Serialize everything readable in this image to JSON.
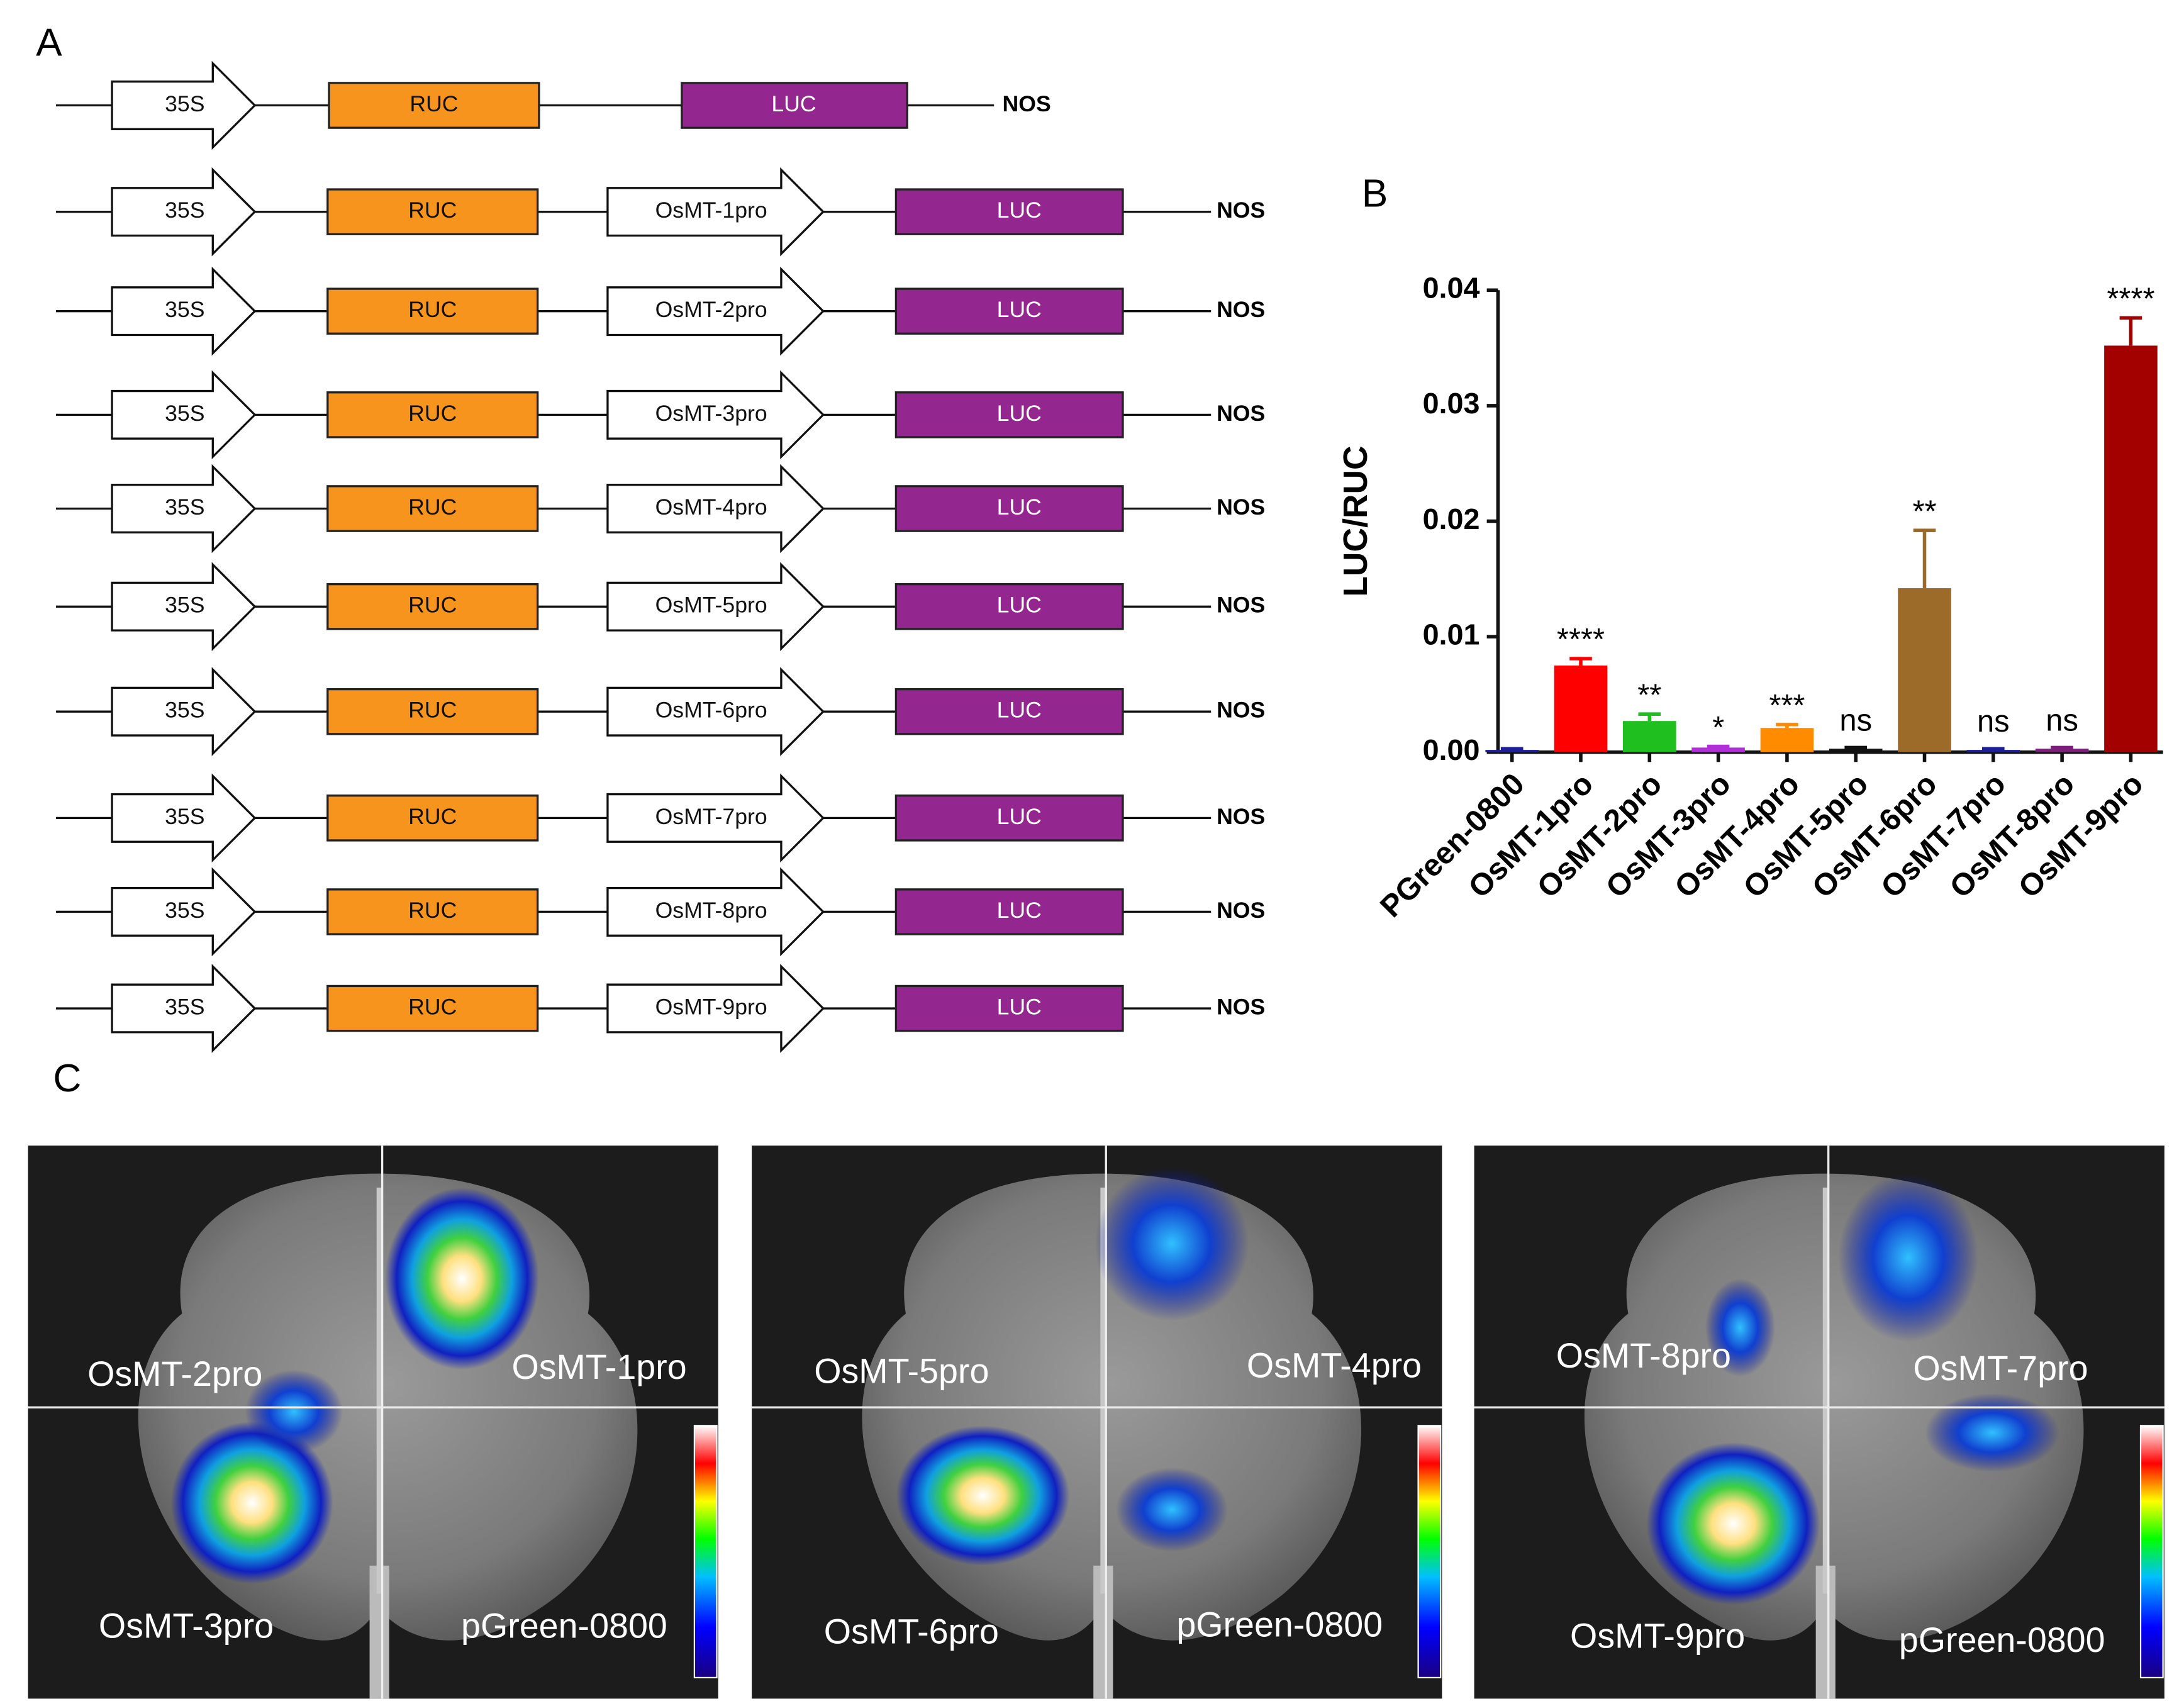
{
  "panel_labels": [
    "A",
    "B",
    "C"
  ],
  "constructs": [
    [
      "35S",
      "RUC",
      "LUC",
      "NOS"
    ],
    [
      "35S",
      "RUC",
      "OsMT-1pro",
      "LUC",
      "NOS"
    ],
    [
      "35S",
      "RUC",
      "OsMT-2pro",
      "LUC",
      "NOS"
    ],
    [
      "35S",
      "RUC",
      "OsMT-3pro",
      "LUC",
      "NOS"
    ],
    [
      "35S",
      "RUC",
      "OsMT-4pro",
      "LUC",
      "NOS"
    ],
    [
      "35S",
      "RUC",
      "OsMT-5pro",
      "LUC",
      "NOS"
    ],
    [
      "35S",
      "RUC",
      "OsMT-6pro",
      "LUC",
      "NOS"
    ],
    [
      "35S",
      "RUC",
      "OsMT-7pro",
      "LUC",
      "NOS"
    ],
    [
      "35S",
      "RUC",
      "OsMT-8pro",
      "LUC",
      "NOS"
    ],
    [
      "35S",
      "RUC",
      "OsMT-9pro",
      "LUC",
      "NOS"
    ]
  ],
  "chart_data": {
    "type": "bar",
    "ylabel": "LUC/RUC",
    "categories": [
      "PGreen-0800",
      "OsMT-1pro",
      "OsMT-2pro",
      "OsMT-3pro",
      "OsMT-4pro",
      "OsMT-5pro",
      "OsMT-6pro",
      "OsMT-7pro",
      "OsMT-8pro",
      "OsMT-9pro"
    ],
    "values": [
      0.0002,
      0.0075,
      0.0027,
      0.0004,
      0.0021,
      0.0003,
      0.0142,
      0.0002,
      0.0003,
      0.0352
    ],
    "errors": [
      0.0001,
      0.0006,
      0.0006,
      0.0001,
      0.0003,
      0.0001,
      0.005,
      0.0001,
      0.0001,
      0.0024
    ],
    "colors": [
      "#1f1f9a",
      "#ff0000",
      "#1fbf1f",
      "#b02fd6",
      "#ff8c00",
      "#111111",
      "#9c6b2a",
      "#1f1f9a",
      "#7b1f7b",
      "#a30000"
    ],
    "significance": [
      null,
      "****",
      "**",
      "*",
      "***",
      "ns",
      "**",
      "ns",
      "ns",
      "****"
    ],
    "ylim": [
      0,
      0.04
    ],
    "yticks": [
      {
        "value": 0,
        "label": "0.00"
      },
      {
        "value": 0.01,
        "label": "0.01"
      },
      {
        "value": 0.02,
        "label": "0.02"
      },
      {
        "value": 0.03,
        "label": "0.03"
      },
      {
        "value": 0.04,
        "label": "0.04"
      }
    ]
  },
  "leaf_images": [
    {
      "labels": [
        "OsMT-2pro",
        "OsMT-1pro",
        "OsMT-3pro",
        "pGreen-0800"
      ]
    },
    {
      "labels": [
        "OsMT-5pro",
        "OsMT-4pro",
        "OsMT-6pro",
        "pGreen-0800"
      ]
    },
    {
      "labels": [
        "OsMT-8pro",
        "OsMT-7pro",
        "OsMT-9pro",
        "pGreen-0800"
      ]
    }
  ]
}
